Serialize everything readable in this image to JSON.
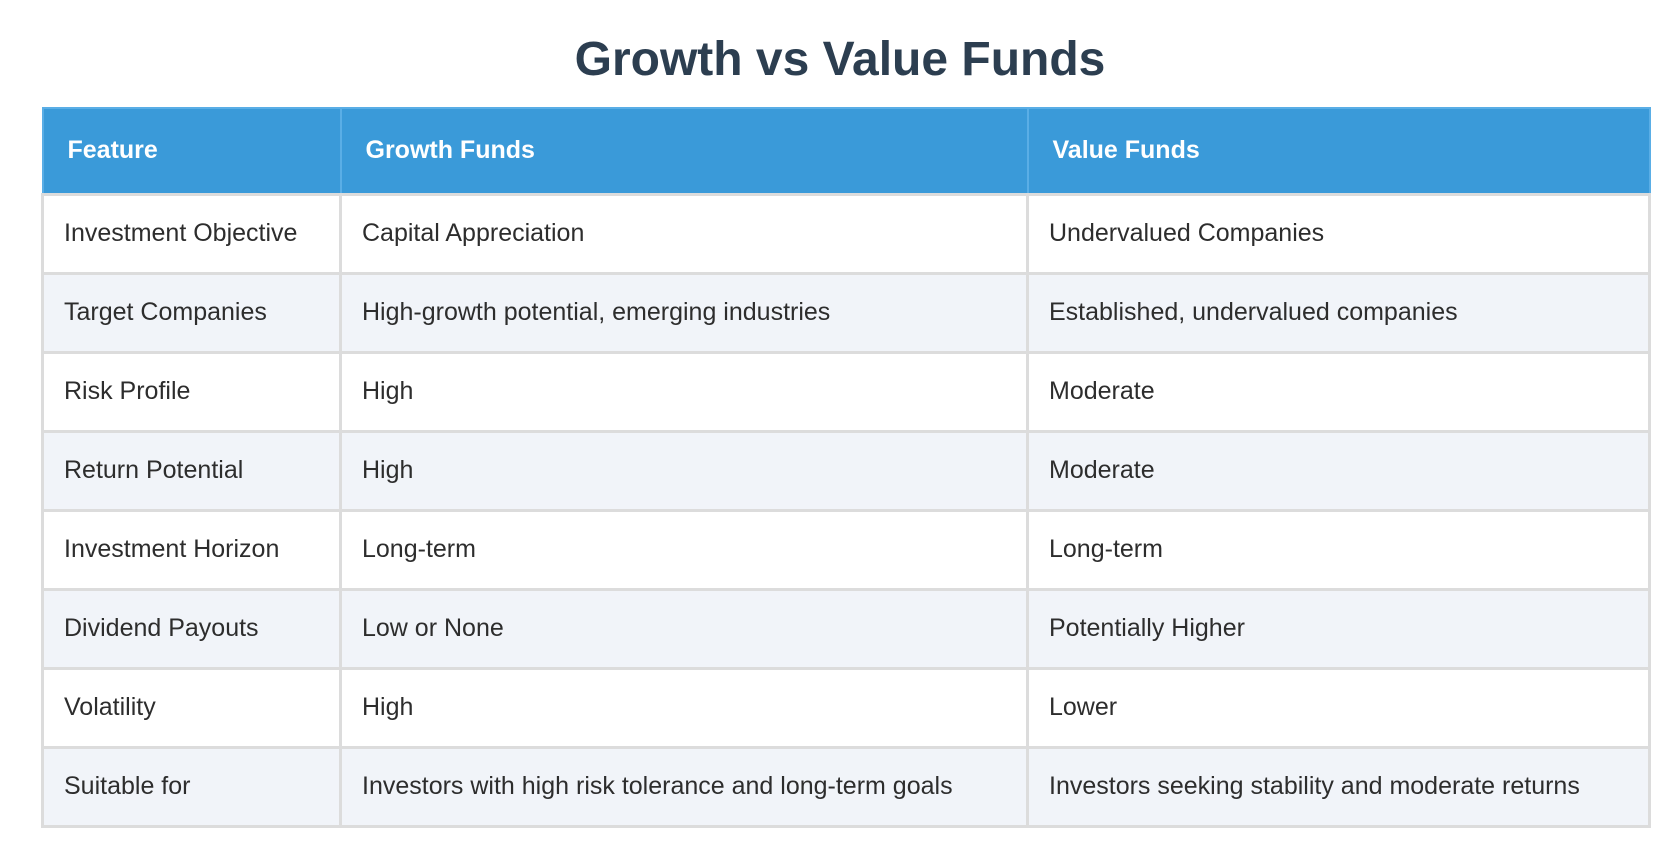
{
  "title": "Growth vs Value Funds",
  "table": {
    "headers": [
      "Feature",
      "Growth Funds",
      "Value Funds"
    ],
    "rows": [
      [
        "Investment Objective",
        "Capital Appreciation",
        "Undervalued Companies"
      ],
      [
        "Target Companies",
        "High-growth potential, emerging industries",
        "Established, undervalued companies"
      ],
      [
        "Risk Profile",
        "High",
        "Moderate"
      ],
      [
        "Return Potential",
        "High",
        "Moderate"
      ],
      [
        "Investment Horizon",
        "Long-term",
        "Long-term"
      ],
      [
        "Dividend Payouts",
        "Low or None",
        "Potentially Higher"
      ],
      [
        "Volatility",
        "High",
        "Lower"
      ],
      [
        "Suitable for",
        "Investors with high risk tolerance and long-term goals",
        "Investors seeking stability and moderate returns"
      ]
    ]
  },
  "colors": {
    "header_bg": "#3a9ad9",
    "title_color": "#2c3e50",
    "row_alt_bg": "#f1f4f9",
    "border": "#dcdcdc"
  }
}
